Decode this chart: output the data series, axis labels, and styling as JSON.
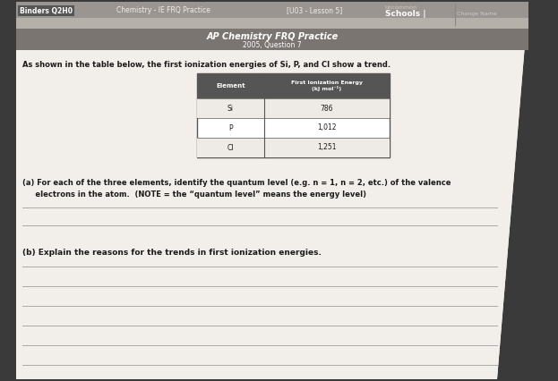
{
  "bg_color": "#3a3a3a",
  "paper_color": "#f2efea",
  "header_strip_color": "#9a9590",
  "title_strip_color": "#8a8580",
  "top_left_label": "Binders Q2H0",
  "top_center_label": "Chemistry - IE FRQ Practice",
  "top_unit_label": "[U03 - Lesson 5]",
  "top_right_label1": "Uncommon",
  "top_right_label2": "Schools |",
  "top_right_label3": "Change Name",
  "title1": "AP Chemistry FRQ Practice",
  "title2": "2005, Question 7",
  "intro": "As shown in the table below, the first ionization energies of Si, P, and Cl show a trend.",
  "table_col1_header": "Element",
  "table_col2_header": "First Ionization Energy\n(kJ mol⁻¹)",
  "table_rows": [
    [
      "Si",
      "786"
    ],
    [
      "P",
      "1,012"
    ],
    [
      "Cl",
      "1,251"
    ]
  ],
  "q_a": "(a) For each of the three elements, identify the quantum level (e.g. n = 1, n = 2, etc.) of the valence\n     electrons in the atom.  (NOTE = the “quantum level” means the energy level)",
  "q_b": "(b) Explain the reasons for the trends in first ionization energies.",
  "lines_a": 2,
  "lines_b": 7,
  "line_color": "#aaaaaa",
  "text_color": "#1a1a1a",
  "table_hdr_bg": "#555555",
  "table_border": "#555555"
}
